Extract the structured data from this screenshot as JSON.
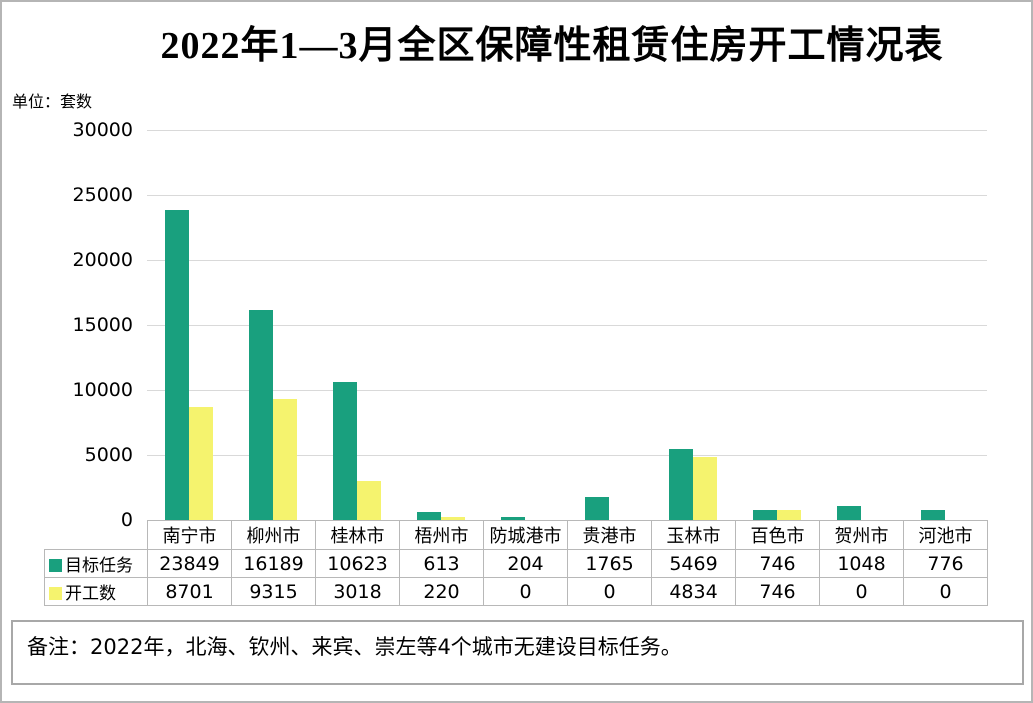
{
  "page": {
    "title": "2022年1—3月全区保障性租赁住房开工情况表",
    "unit_label": "单位：套数",
    "note": "备注：2022年，北海、钦州、来宾、崇左等4个城市无建设目标任务。"
  },
  "colors": {
    "target_series": "#19A07E",
    "started_series": "#F5F36E",
    "gridline": "#d9d9d9",
    "table_border": "#b8b8b8"
  },
  "chart_data": {
    "type": "bar",
    "title": "2022年1—3月全区保障性租赁住房开工情况表",
    "unit": "套数",
    "categories": [
      "南宁市",
      "柳州市",
      "桂林市",
      "梧州市",
      "防城港市",
      "贵港市",
      "玉林市",
      "百色市",
      "贺州市",
      "河池市"
    ],
    "series": [
      {
        "name": "目标任务",
        "color": "#19A07E",
        "values": [
          23849,
          16189,
          10623,
          613,
          204,
          1765,
          5469,
          746,
          1048,
          776
        ]
      },
      {
        "name": "开工数",
        "color": "#F5F36E",
        "values": [
          8701,
          9315,
          3018,
          220,
          0,
          0,
          4834,
          746,
          0,
          0
        ]
      }
    ],
    "ylim": [
      0,
      30000
    ],
    "yticks": [
      30000,
      25000,
      20000,
      15000,
      10000,
      5000,
      0
    ],
    "grid": true,
    "legend_position": "table-left"
  }
}
